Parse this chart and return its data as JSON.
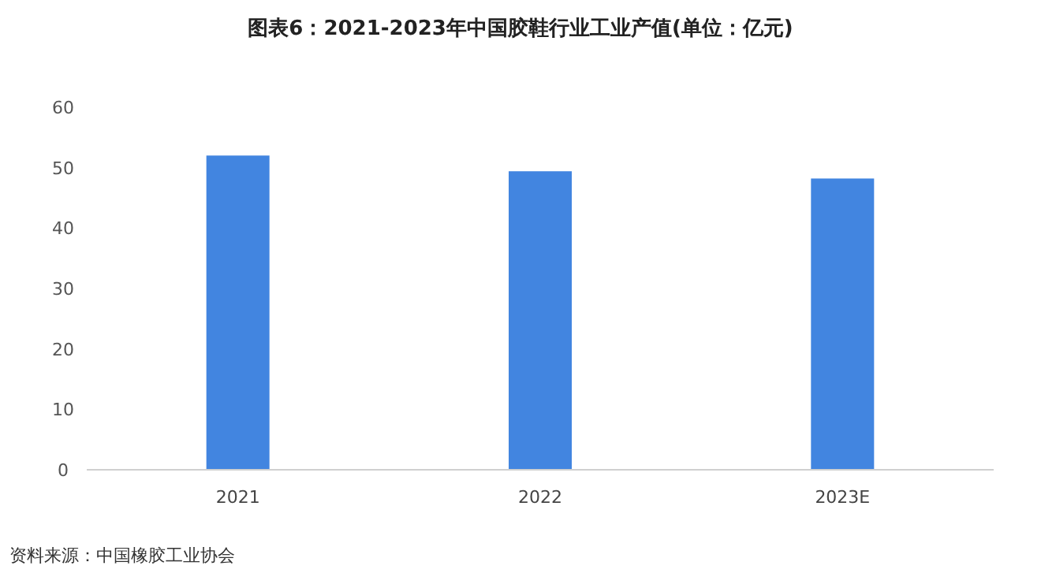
{
  "chart_data": {
    "type": "bar",
    "title": "图表6：2021-2023年中国胶鞋行业工业产值(单位：亿元)",
    "categories": [
      "2021",
      "2022",
      "2023E"
    ],
    "values": [
      52.0,
      49.4,
      48.2
    ],
    "color": "#4285e0",
    "ylim": [
      0,
      60
    ],
    "yticks": [
      0,
      10,
      20,
      30,
      40,
      50,
      60
    ],
    "grid": false,
    "annotations": [
      "资料来源：中国橡胶工业协会"
    ]
  }
}
